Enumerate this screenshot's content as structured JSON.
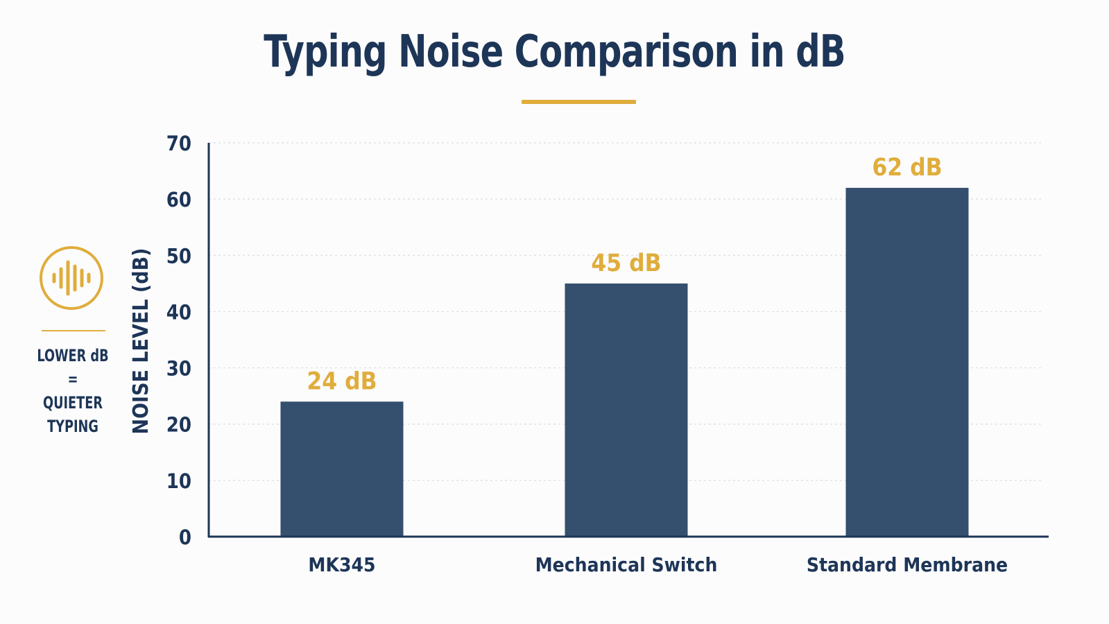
{
  "title": "Typing Noise Comparison in dB",
  "side_note": {
    "icon": "sound-wave-icon",
    "text": "LOWER dB\n=\nQUIETER\nTYPING"
  },
  "colors": {
    "title": "#1d3557",
    "accent": "#e0ad3c",
    "bar": "#354f6e",
    "grid": "#d9dde2",
    "axis": "#1d3557"
  },
  "chart_data": {
    "type": "bar",
    "title": "Typing Noise Comparison in dB",
    "xlabel": "",
    "ylabel": "NOISE LEVEL (dB)",
    "categories": [
      "MK345",
      "Mechanical Switch",
      "Standard Membrane"
    ],
    "values": [
      24,
      45,
      62
    ],
    "data_labels": [
      "24 dB",
      "45 dB",
      "62 dB"
    ],
    "ylim": [
      0,
      70
    ],
    "yticks": [
      0,
      10,
      20,
      30,
      40,
      50,
      60,
      70
    ],
    "grid": true,
    "legend": "none"
  }
}
